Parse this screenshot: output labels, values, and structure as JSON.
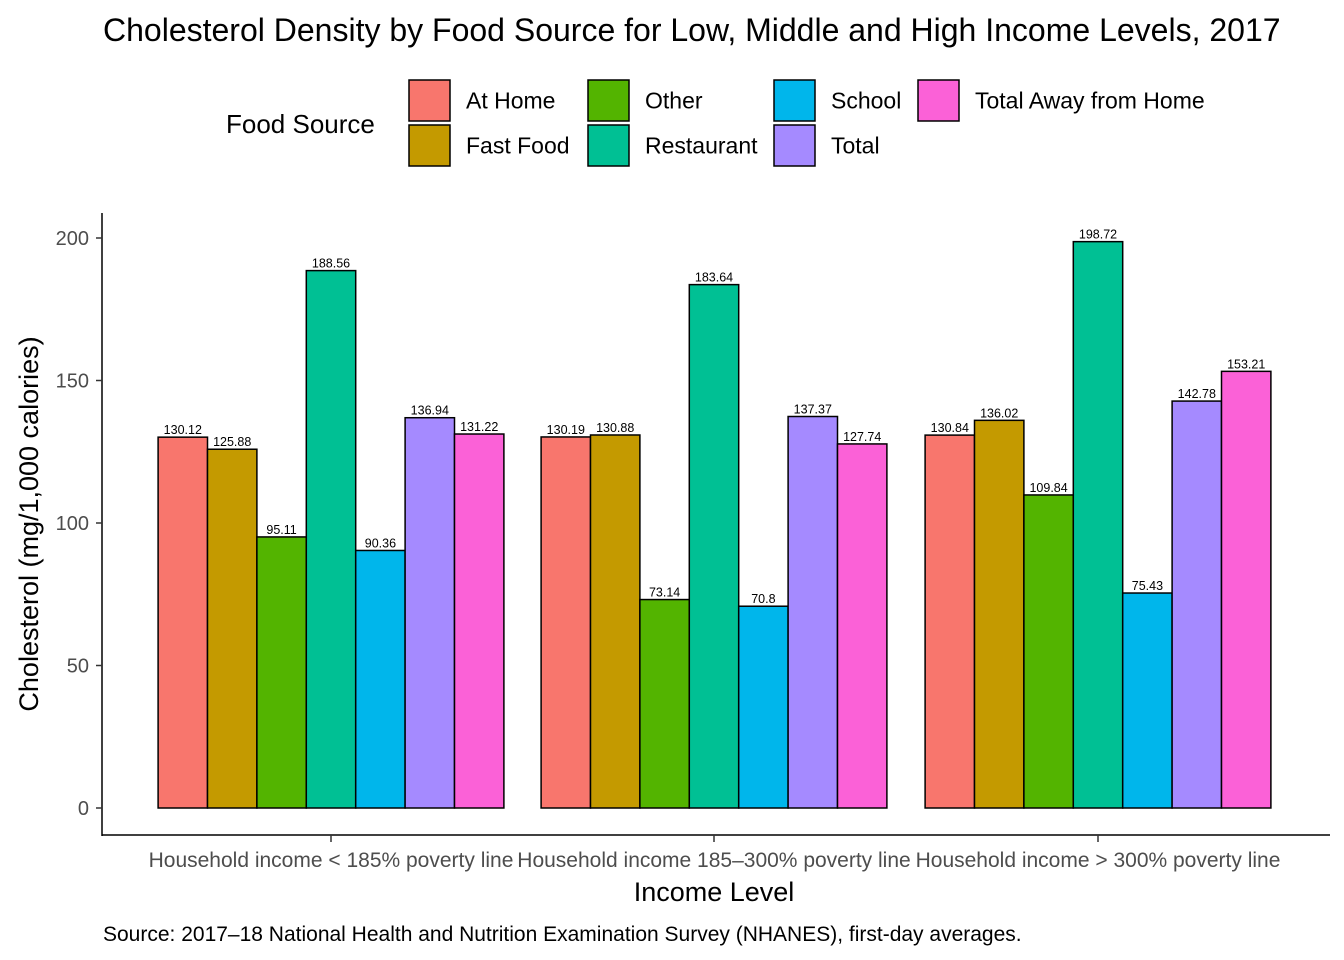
{
  "chart_data": {
    "type": "bar",
    "title": "Cholesterol Density by Food Source for Low, Middle and High Income Levels, 2017",
    "xlabel": "Income Level",
    "ylabel": "Cholesterol (mg/1,000 calories)",
    "ylim": [
      0,
      210
    ],
    "yticks": [
      0,
      50,
      100,
      150,
      200
    ],
    "grid": false,
    "legend_title": "Food Source",
    "legend_position": "top",
    "caption": "Source: 2017–18 National Health and Nutrition Examination Survey (NHANES), first-day averages.",
    "categories": [
      "Household income < 185% poverty line",
      "Household income 185–300% poverty line",
      "Household income > 300% poverty line"
    ],
    "series": [
      {
        "name": "At Home",
        "color": "#F8766D",
        "values": [
          130.12,
          130.19,
          130.84
        ]
      },
      {
        "name": "Fast Food",
        "color": "#C49A00",
        "values": [
          125.88,
          130.88,
          136.02
        ]
      },
      {
        "name": "Other",
        "color": "#53B400",
        "values": [
          95.11,
          73.14,
          109.84
        ]
      },
      {
        "name": "Restaurant",
        "color": "#00C094",
        "values": [
          188.56,
          183.64,
          198.72
        ]
      },
      {
        "name": "School",
        "color": "#00B6EB",
        "values": [
          90.36,
          70.8,
          75.43
        ]
      },
      {
        "name": "Total",
        "color": "#A58AFF",
        "values": [
          136.94,
          137.37,
          142.78
        ]
      },
      {
        "name": "Total Away from Home",
        "color": "#FB61D7",
        "values": [
          131.22,
          127.74,
          153.21
        ]
      }
    ]
  }
}
